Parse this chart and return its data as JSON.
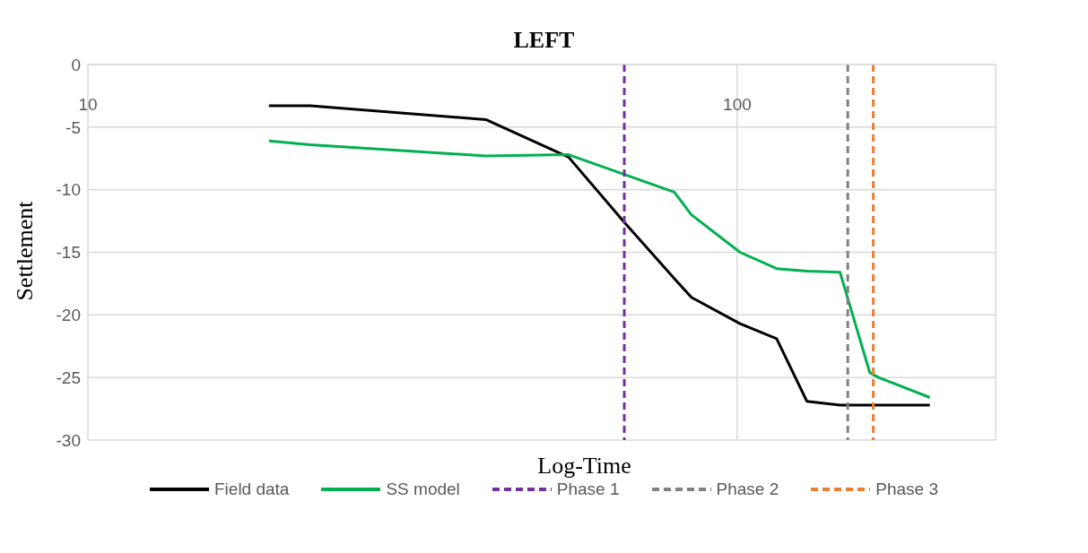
{
  "chart_data": {
    "type": "line",
    "title": "LEFT",
    "xlabel": "Log-Time",
    "ylabel": "Settlement",
    "log": "x",
    "xlim": [
      10,
      250
    ],
    "xticks": [
      10,
      100
    ],
    "ylim": [
      -30,
      0
    ],
    "yticks": [
      0,
      -5,
      -10,
      -15,
      -20,
      -25,
      -30
    ],
    "grid": true,
    "legend": "bottom",
    "marker": "none",
    "line_style": "solid",
    "series": [
      {
        "name": "Field data",
        "color": "#000000",
        "x": [
          19,
          22,
          41,
          55,
          67,
          80,
          85,
          101,
          115,
          128,
          144,
          198
        ],
        "values": [
          -3.3,
          -3.3,
          -4.4,
          -7.4,
          -12.6,
          -17.1,
          -18.6,
          -20.7,
          -21.9,
          -26.9,
          -27.2,
          -27.2
        ]
      },
      {
        "name": "SS model",
        "color": "#00b050",
        "x": [
          19,
          22,
          41,
          55,
          80,
          85,
          101,
          115,
          128,
          144,
          160,
          165,
          198
        ],
        "values": [
          -6.1,
          -6.4,
          -7.3,
          -7.2,
          -10.2,
          -12,
          -15,
          -16.3,
          -16.5,
          -16.6,
          -24.6,
          -25,
          -26.6
        ]
      }
    ],
    "ref_lines": [
      {
        "axis": "x",
        "value": 67,
        "label": "Phase 1",
        "color": "#7030a0",
        "line_style": "dashed"
      },
      {
        "axis": "x",
        "value": 148,
        "label": "Phase 2",
        "color": "#808080",
        "line_style": "dashed"
      },
      {
        "axis": "x",
        "value": 162,
        "label": "Phase 3",
        "color": "#ed7d31",
        "line_style": "dashed"
      }
    ]
  }
}
